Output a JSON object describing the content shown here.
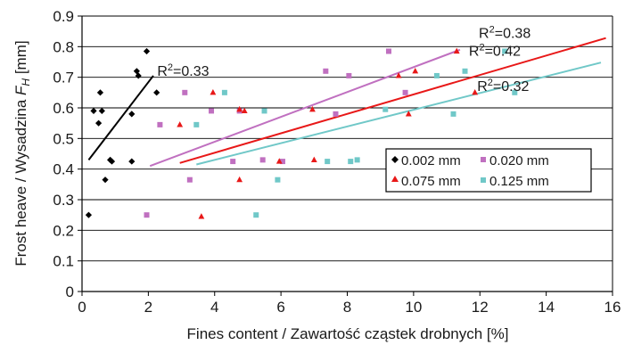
{
  "chart_data": {
    "type": "scatter",
    "xlabel": "Fines content / Zawartość cząstek drobnych [%]",
    "ylabel_main": "Frost heave / Wysadzina ",
    "ylabel_symbol": "F",
    "ylabel_subscript": "H",
    "ylabel_unit": " [mm]",
    "xlim": [
      0,
      16
    ],
    "ylim": [
      0,
      0.9
    ],
    "x_ticks": [
      "0",
      "2",
      "4",
      "6",
      "8",
      "10",
      "12",
      "14",
      "16"
    ],
    "y_ticks": [
      "0",
      "0.1",
      "0.2",
      "0.3",
      "0.4",
      "0.5",
      "0.6",
      "0.7",
      "0.8",
      "0.9"
    ],
    "x_tick_values": [
      0,
      2,
      4,
      6,
      8,
      10,
      12,
      14,
      16
    ],
    "y_tick_values": [
      0,
      0.1,
      0.2,
      0.3,
      0.4,
      0.5,
      0.6,
      0.7,
      0.8,
      0.9
    ],
    "grid": "horizontal",
    "legend_position": "right-center",
    "series": [
      {
        "name": "0.002 mm",
        "marker": "diamond",
        "color": "#000000",
        "points": [
          [
            0.2,
            0.25
          ],
          [
            0.35,
            0.59
          ],
          [
            0.5,
            0.55
          ],
          [
            0.55,
            0.65
          ],
          [
            0.6,
            0.59
          ],
          [
            0.7,
            0.365
          ],
          [
            0.85,
            0.43
          ],
          [
            0.9,
            0.425
          ],
          [
            1.5,
            0.425
          ],
          [
            1.5,
            0.58
          ],
          [
            1.65,
            0.72
          ],
          [
            1.7,
            0.705
          ],
          [
            1.95,
            0.785
          ],
          [
            2.25,
            0.65
          ]
        ],
        "trend": [
          [
            0.2,
            0.43
          ],
          [
            2.15,
            0.705
          ]
        ],
        "r2": "0.33"
      },
      {
        "name": "0.020 mm",
        "marker": "square",
        "color": "#c070c0",
        "points": [
          [
            1.95,
            0.25
          ],
          [
            2.35,
            0.545
          ],
          [
            3.1,
            0.65
          ],
          [
            3.25,
            0.365
          ],
          [
            3.9,
            0.59
          ],
          [
            4.55,
            0.425
          ],
          [
            4.75,
            0.59
          ],
          [
            5.45,
            0.43
          ],
          [
            6.05,
            0.425
          ],
          [
            7.35,
            0.72
          ],
          [
            7.65,
            0.58
          ],
          [
            8.05,
            0.705
          ],
          [
            9.25,
            0.785
          ],
          [
            9.75,
            0.65
          ]
        ],
        "trend": [
          [
            2.05,
            0.41
          ],
          [
            11.4,
            0.79
          ]
        ],
        "r2": "0.42"
      },
      {
        "name": "0.075 mm",
        "marker": "triangle",
        "color": "#e81818",
        "points": [
          [
            2.95,
            0.545
          ],
          [
            3.6,
            0.245
          ],
          [
            3.95,
            0.65
          ],
          [
            4.75,
            0.365
          ],
          [
            4.75,
            0.595
          ],
          [
            4.9,
            0.59
          ],
          [
            5.95,
            0.425
          ],
          [
            6.95,
            0.595
          ],
          [
            7.0,
            0.43
          ],
          [
            9.55,
            0.705
          ],
          [
            9.85,
            0.58
          ],
          [
            10.05,
            0.72
          ],
          [
            11.3,
            0.785
          ],
          [
            11.85,
            0.65
          ]
        ],
        "trend": [
          [
            2.95,
            0.42
          ],
          [
            15.8,
            0.828
          ]
        ],
        "r2": "0.38"
      },
      {
        "name": "0.125 mm",
        "marker": "square",
        "color": "#70c8c8",
        "points": [
          [
            3.45,
            0.545
          ],
          [
            4.3,
            0.65
          ],
          [
            5.25,
            0.25
          ],
          [
            5.5,
            0.59
          ],
          [
            5.9,
            0.365
          ],
          [
            7.4,
            0.425
          ],
          [
            8.1,
            0.425
          ],
          [
            8.3,
            0.43
          ],
          [
            9.15,
            0.595
          ],
          [
            10.7,
            0.705
          ],
          [
            11.2,
            0.58
          ],
          [
            11.55,
            0.72
          ],
          [
            12.75,
            0.785
          ],
          [
            13.05,
            0.65
          ]
        ],
        "trend": [
          [
            3.45,
            0.415
          ],
          [
            15.65,
            0.748
          ]
        ],
        "r2": "0.32"
      }
    ],
    "r2_prefix": "R",
    "r2_power": "2",
    "r2_sep": "="
  }
}
